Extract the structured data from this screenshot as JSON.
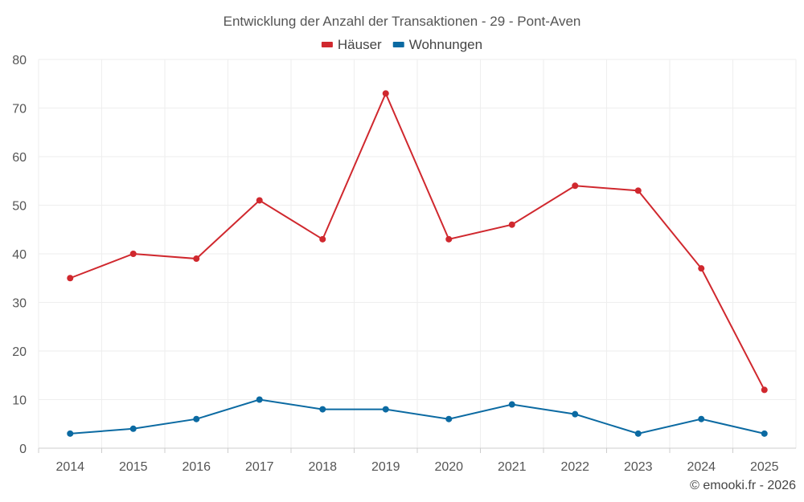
{
  "chart_data": {
    "type": "line",
    "title": "Entwicklung der Anzahl der Transaktionen - 29 - Pont-Aven",
    "xlabel": "",
    "ylabel": "",
    "categories": [
      "2014",
      "2015",
      "2016",
      "2017",
      "2018",
      "2019",
      "2020",
      "2021",
      "2022",
      "2023",
      "2024",
      "2025"
    ],
    "ylim": [
      0,
      80
    ],
    "yticks": [
      0,
      10,
      20,
      30,
      40,
      50,
      60,
      70,
      80
    ],
    "grid": true,
    "legend_position": "top-center",
    "series": [
      {
        "name": "Häuser",
        "color": "#d0282e",
        "values": [
          35,
          40,
          39,
          51,
          43,
          73,
          43,
          46,
          54,
          53,
          37,
          12
        ]
      },
      {
        "name": "Wohnungen",
        "color": "#0b6aa2",
        "values": [
          3,
          4,
          6,
          10,
          8,
          8,
          6,
          9,
          7,
          3,
          6,
          3
        ]
      }
    ],
    "credit": "© emooki.fr - 2026"
  }
}
